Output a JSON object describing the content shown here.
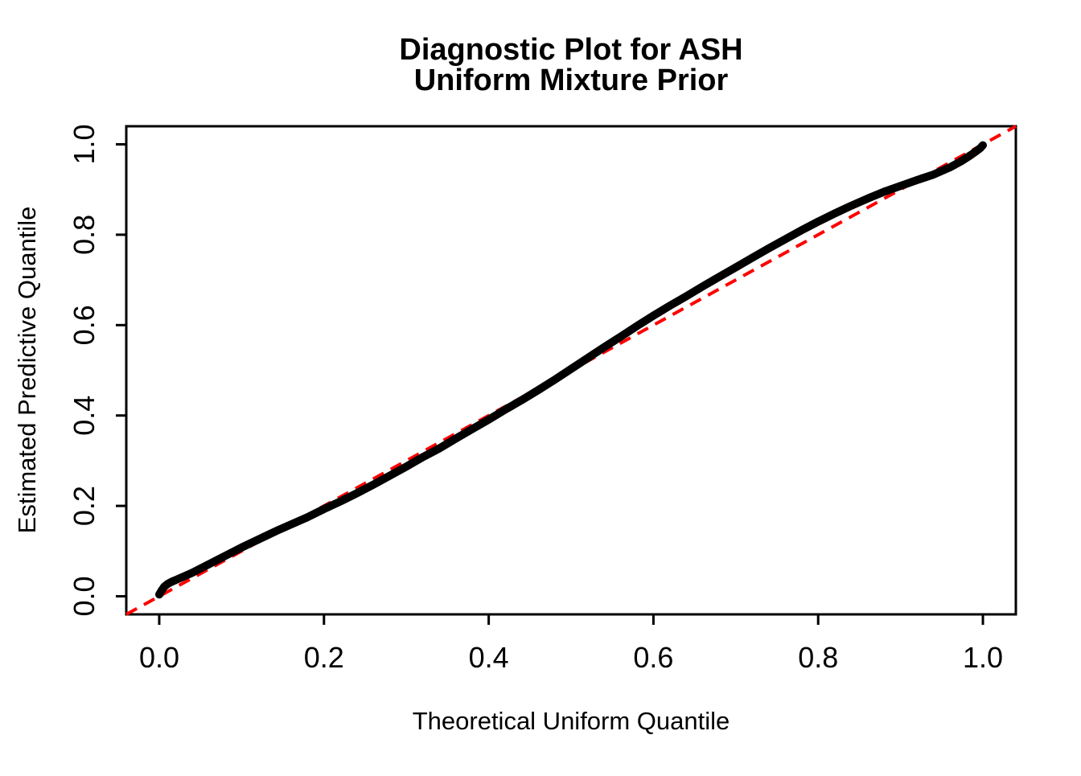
{
  "figure": {
    "title_line1": "Diagnostic Plot for ASH",
    "title_line2": "Uniform Mixture Prior",
    "xlabel": "Theoretical Uniform Quantile",
    "ylabel": "Estimated Predictive Quantile"
  },
  "colors": {
    "curve": "#000000",
    "reference_line": "#ff0000",
    "frame": "#000000",
    "background": "#ffffff"
  },
  "chart_data": {
    "type": "line",
    "title": "Diagnostic Plot for ASH Uniform Mixture Prior",
    "xlabel": "Theoretical Uniform Quantile",
    "ylabel": "Estimated Predictive Quantile",
    "xlim": [
      -0.04,
      1.04
    ],
    "ylim": [
      -0.04,
      1.04
    ],
    "grid": false,
    "legend": "none",
    "x_ticks": {
      "values": [
        0.0,
        0.2,
        0.4,
        0.6,
        0.8,
        1.0
      ],
      "labels": [
        "0.0",
        "0.2",
        "0.4",
        "0.6",
        "0.8",
        "1.0"
      ]
    },
    "y_ticks": {
      "values": [
        0.0,
        0.2,
        0.4,
        0.6,
        0.8,
        1.0
      ],
      "labels": [
        "0.0",
        "0.2",
        "0.4",
        "0.6",
        "0.8",
        "1.0"
      ]
    },
    "series": [
      {
        "name": "estimated-predictive-quantile-curve",
        "color": "#000000",
        "style": "solid",
        "line_width": 10,
        "points": [
          [
            0.0,
            0.004
          ],
          [
            0.003,
            0.013
          ],
          [
            0.006,
            0.021
          ],
          [
            0.01,
            0.027
          ],
          [
            0.015,
            0.032
          ],
          [
            0.02,
            0.036
          ],
          [
            0.03,
            0.044
          ],
          [
            0.04,
            0.052
          ],
          [
            0.055,
            0.066
          ],
          [
            0.07,
            0.08
          ],
          [
            0.085,
            0.094
          ],
          [
            0.1,
            0.108
          ],
          [
            0.115,
            0.121
          ],
          [
            0.13,
            0.134
          ],
          [
            0.145,
            0.147
          ],
          [
            0.16,
            0.159
          ],
          [
            0.18,
            0.175
          ],
          [
            0.2,
            0.193
          ],
          [
            0.22,
            0.21
          ],
          [
            0.24,
            0.228
          ],
          [
            0.26,
            0.247
          ],
          [
            0.28,
            0.267
          ],
          [
            0.3,
            0.287
          ],
          [
            0.32,
            0.308
          ],
          [
            0.34,
            0.327
          ],
          [
            0.36,
            0.349
          ],
          [
            0.38,
            0.37
          ],
          [
            0.4,
            0.391
          ],
          [
            0.42,
            0.413
          ],
          [
            0.44,
            0.434
          ],
          [
            0.46,
            0.456
          ],
          [
            0.48,
            0.479
          ],
          [
            0.5,
            0.503
          ],
          [
            0.52,
            0.527
          ],
          [
            0.54,
            0.551
          ],
          [
            0.56,
            0.574
          ],
          [
            0.58,
            0.598
          ],
          [
            0.6,
            0.621
          ],
          [
            0.62,
            0.643
          ],
          [
            0.64,
            0.664
          ],
          [
            0.66,
            0.686
          ],
          [
            0.68,
            0.707
          ],
          [
            0.7,
            0.728
          ],
          [
            0.72,
            0.749
          ],
          [
            0.74,
            0.77
          ],
          [
            0.76,
            0.79
          ],
          [
            0.78,
            0.81
          ],
          [
            0.8,
            0.829
          ],
          [
            0.82,
            0.847
          ],
          [
            0.84,
            0.864
          ],
          [
            0.86,
            0.88
          ],
          [
            0.88,
            0.895
          ],
          [
            0.9,
            0.908
          ],
          [
            0.92,
            0.921
          ],
          [
            0.94,
            0.933
          ],
          [
            0.96,
            0.949
          ],
          [
            0.975,
            0.964
          ],
          [
            0.985,
            0.976
          ],
          [
            0.992,
            0.985
          ],
          [
            0.997,
            0.992
          ],
          [
            1.0,
            0.998
          ]
        ]
      },
      {
        "name": "reference-line-y-equals-x",
        "color": "#ff0000",
        "style": "dashed",
        "line_width": 4,
        "points": [
          [
            -0.04,
            -0.04
          ],
          [
            1.04,
            1.04
          ]
        ]
      }
    ]
  }
}
